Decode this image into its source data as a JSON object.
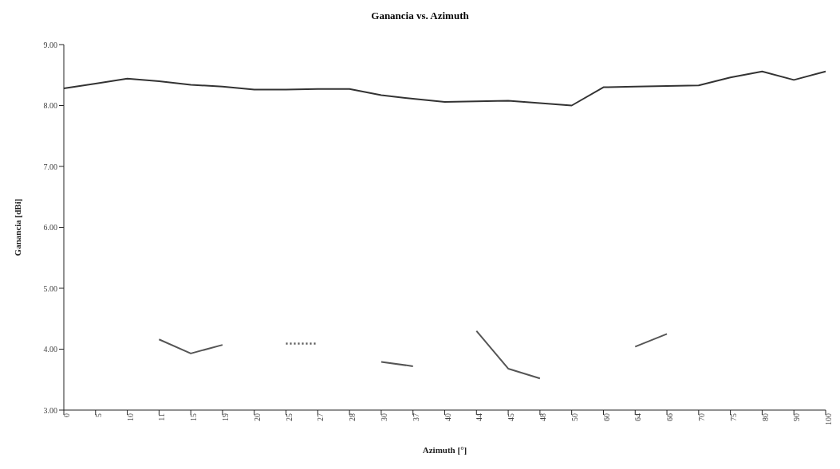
{
  "chart_data": {
    "type": "line",
    "title": "Ganancia vs. Azimuth",
    "xlabel": "Azimuth [°]",
    "ylabel": "Ganancia [dBi]",
    "categories": [
      "0",
      "5",
      "10",
      "11",
      "15",
      "19",
      "20",
      "25",
      "27",
      "28",
      "30",
      "37",
      "40",
      "44",
      "45",
      "48",
      "50",
      "60",
      "64",
      "66",
      "70",
      "75",
      "80",
      "90",
      "100"
    ],
    "ylim": [
      3,
      9
    ],
    "yticks": [
      {
        "value": 3,
        "label": "3.00"
      },
      {
        "value": 4,
        "label": "4.00"
      },
      {
        "value": 5,
        "label": "5.00"
      },
      {
        "value": 6,
        "label": "6.00"
      },
      {
        "value": 7,
        "label": "7.00"
      },
      {
        "value": 8,
        "label": "8.00"
      },
      {
        "value": 9,
        "label": "9.00"
      }
    ],
    "grid": false,
    "legend": false,
    "marker": "none",
    "series": [
      {
        "color": "#333333",
        "line_style": "solid",
        "values": [
          8.28,
          8.36,
          8.44,
          8.4,
          8.34,
          8.31,
          8.26,
          8.26,
          8.27,
          8.27,
          8.17,
          8.11,
          8.06,
          8.07,
          8.08,
          8.04,
          8.0,
          8.3,
          8.31,
          8.32,
          8.33,
          8.46,
          8.56,
          8.42,
          8.56
        ]
      },
      {
        "color": "#555555",
        "line_style": "solid",
        "values": [
          null,
          null,
          null,
          4.16,
          3.93,
          4.07,
          null,
          null,
          null,
          null,
          3.79,
          3.72,
          null,
          4.3,
          3.68,
          3.52,
          null,
          null,
          4.04,
          4.25,
          null,
          null,
          null,
          null,
          null
        ]
      },
      {
        "color": "#555555",
        "line_style": "dotted",
        "values": [
          null,
          null,
          null,
          null,
          null,
          null,
          null,
          4.09,
          4.09,
          null,
          null,
          null,
          null,
          null,
          null,
          null,
          null,
          null,
          null,
          null,
          null,
          null,
          null,
          null,
          null
        ]
      }
    ]
  }
}
